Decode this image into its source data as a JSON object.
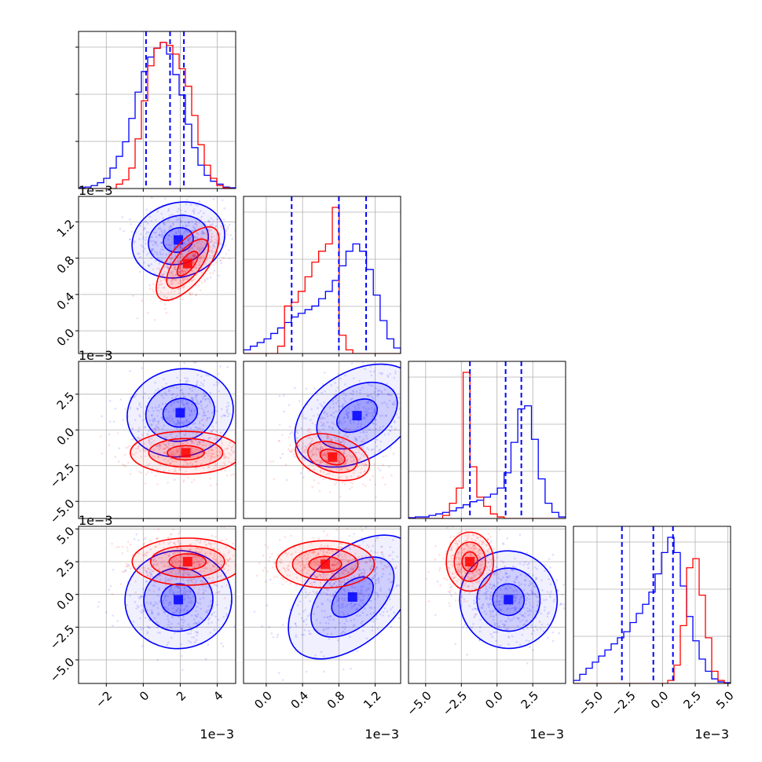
{
  "chart_data": {
    "type": "corner",
    "title": "",
    "parameters": [
      {
        "index": 0,
        "range": [
          -3.5,
          5.0
        ],
        "ticks": [
          -2,
          0,
          2,
          4
        ],
        "tick_labels": [
          "−2",
          "0",
          "2",
          "4"
        ],
        "offset": "1e−3"
      },
      {
        "index": 1,
        "range": [
          -0.25,
          1.48
        ],
        "ticks": [
          0.0,
          0.4,
          0.8,
          1.2
        ],
        "tick_labels": [
          "0.0",
          "0.4",
          "0.8",
          "1.2"
        ],
        "offset": "1e−3"
      },
      {
        "index": 2,
        "range": [
          -6.2,
          4.8
        ],
        "ticks": [
          -5.0,
          -2.5,
          0.0,
          2.5
        ],
        "tick_labels": [
          "−5.0",
          "−2.5",
          "0.0",
          "2.5"
        ],
        "offset": "1e−3"
      },
      {
        "index": 3,
        "range": [
          -6.8,
          5.2
        ],
        "ticks": [
          -5.0,
          -2.5,
          0.0,
          2.5,
          5.0
        ],
        "tick_labels": [
          "−5.0",
          "−2.5",
          "0.0",
          "2.5",
          "5.0"
        ],
        "offset": "1e−3"
      }
    ],
    "series": [
      {
        "color": "#0000ff",
        "means": [
          1.5,
          0.8,
          0.5,
          -0.7
        ],
        "stds": [
          1.3,
          0.33,
          2.0,
          2.2
        ],
        "quantile_lines": [
          [
            0.15,
            1.45,
            2.2
          ],
          [
            0.28,
            0.8,
            1.1
          ],
          [
            -1.9,
            0.6,
            1.7
          ],
          [
            -3.1,
            -0.7,
            0.8
          ]
        ],
        "histograms": [
          [
            0.5,
            1,
            2,
            4,
            7,
            14,
            22,
            32,
            48,
            66,
            80,
            90,
            96,
            100,
            92,
            78,
            64,
            44,
            28,
            16,
            9,
            5,
            3,
            1,
            0.5
          ],
          [
            2,
            4,
            6,
            8,
            11,
            14,
            17,
            20,
            22,
            24,
            26,
            30,
            34,
            40,
            48,
            56,
            60,
            56,
            46,
            32,
            18,
            8,
            3
          ],
          [
            0.5,
            1,
            1,
            2,
            3,
            4,
            5,
            7,
            9,
            11,
            12,
            14,
            16,
            20,
            30,
            50,
            72,
            74,
            52,
            26,
            10,
            4,
            1
          ],
          [
            2,
            6,
            10,
            14,
            18,
            22,
            26,
            30,
            34,
            40,
            46,
            52,
            60,
            72,
            86,
            96,
            86,
            64,
            44,
            28,
            16,
            8,
            3,
            1,
            0.5
          ]
        ],
        "pairs": [
          {
            "x": 0,
            "y": 1,
            "center": [
              1.9,
              1.0
            ],
            "widths": [
              0.75,
              0.12
            ],
            "angle": 0.3,
            "levels": [
              1.1,
              2.2,
              3.4
            ]
          },
          {
            "x": 0,
            "y": 2,
            "center": [
              2.0,
              1.2
            ],
            "widths": [
              0.85,
              0.9
            ],
            "angle": 0.2,
            "levels": [
              1.1,
              2.2,
              3.4
            ]
          },
          {
            "x": 1,
            "y": 2,
            "center": [
              1.0,
              1.0
            ],
            "widths": [
              0.22,
              0.9
            ],
            "angle": 0.55,
            "levels": [
              1.1,
              2.2,
              3.4
            ]
          },
          {
            "x": 0,
            "y": 3,
            "center": [
              1.9,
              -0.4
            ],
            "widths": [
              0.85,
              1.1
            ],
            "angle": 0.1,
            "levels": [
              1.1,
              2.2,
              3.4
            ]
          },
          {
            "x": 1,
            "y": 3,
            "center": [
              0.95,
              -0.2
            ],
            "widths": [
              0.25,
              1.0
            ],
            "angle": 0.75,
            "levels": [
              1.1,
              2.2,
              3.4
            ]
          },
          {
            "x": 2,
            "y": 3,
            "center": [
              0.8,
              -0.4
            ],
            "widths": [
              1.0,
              1.1
            ],
            "angle": 0.75,
            "levels": [
              1.1,
              2.2,
              3.4
            ]
          }
        ]
      },
      {
        "color": "#ff0000",
        "means": [
          1.5,
          0.72,
          -1.8,
          2.4
        ],
        "stds": [
          1.0,
          0.12,
          0.6,
          0.8
        ],
        "quantile_lines": [],
        "histograms": [
          [
            0,
            0,
            0,
            0,
            0,
            0,
            3,
            6,
            14,
            34,
            60,
            84,
            96,
            100,
            98,
            92,
            82,
            70,
            50,
            30,
            16,
            7,
            2,
            0.5,
            0
          ],
          [
            0,
            0,
            0,
            0,
            0,
            4,
            26,
            28,
            34,
            42,
            50,
            56,
            60,
            80,
            10,
            2,
            0,
            0,
            0,
            0,
            0,
            0,
            0
          ],
          [
            0,
            0,
            0,
            0,
            0,
            2,
            10,
            20,
            96,
            34,
            14,
            8,
            3,
            1,
            0,
            0,
            0,
            0,
            0,
            0,
            0,
            0,
            0
          ],
          [
            0,
            0,
            0,
            0,
            0,
            0,
            0,
            0,
            0,
            0,
            0,
            0,
            0,
            0,
            0,
            2,
            12,
            38,
            76,
            82,
            58,
            30,
            8,
            2,
            0
          ]
        ],
        "pairs": [
          {
            "x": 0,
            "y": 1,
            "center": [
              2.4,
              0.74
            ],
            "widths": [
              0.8,
              0.07
            ],
            "angle": 0.9,
            "levels": [
              1.0,
              2.0,
              3.0
            ]
          },
          {
            "x": 0,
            "y": 2,
            "center": [
              2.3,
              -1.6
            ],
            "widths": [
              1.0,
              0.5
            ],
            "angle": 0.0,
            "levels": [
              1.0,
              2.0,
              3.0
            ]
          },
          {
            "x": 1,
            "y": 2,
            "center": [
              0.73,
              -1.9
            ],
            "widths": [
              0.14,
              0.5
            ],
            "angle": -0.3,
            "levels": [
              1.0,
              2.0,
              3.0
            ]
          },
          {
            "x": 0,
            "y": 3,
            "center": [
              2.4,
              2.5
            ],
            "widths": [
              1.0,
              0.6
            ],
            "angle": 0.0,
            "levels": [
              1.0,
              2.0,
              3.0
            ]
          },
          {
            "x": 1,
            "y": 3,
            "center": [
              0.65,
              2.3
            ],
            "widths": [
              0.18,
              0.6
            ],
            "angle": 0.0,
            "levels": [
              1.0,
              2.0,
              3.0
            ]
          },
          {
            "x": 2,
            "y": 3,
            "center": [
              -1.9,
              2.5
            ],
            "widths": [
              0.55,
              0.75
            ],
            "angle": 0.0,
            "levels": [
              1.0,
              2.0,
              3.0
            ]
          }
        ]
      }
    ],
    "grid": true,
    "legend": "none",
    "xlabel": "",
    "ylabel": ""
  }
}
